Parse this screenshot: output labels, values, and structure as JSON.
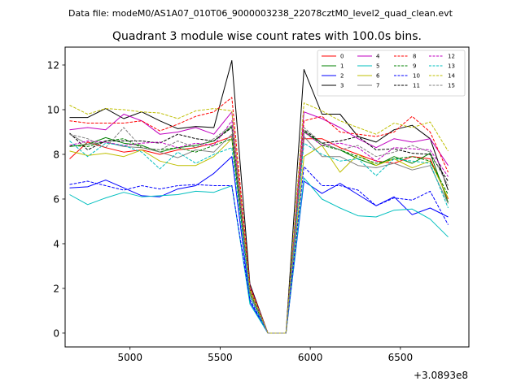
{
  "chart_data": {
    "type": "line",
    "suptitle": "Data file: modeM0/AS1A07_010T06_9000003238_22078cztM0_level2_quad_clean.evt",
    "title": "Quadrant 3 module wise count rates with 100.0s bins.",
    "xlabel": "",
    "ylabel": "",
    "offset_label": "+3.0893e8",
    "xlim": [
      4640,
      6880
    ],
    "ylim": [
      -0.62,
      12.8
    ],
    "xticks": [
      5000,
      5500,
      6000,
      6500
    ],
    "yticks": [
      0,
      2,
      4,
      6,
      8,
      10,
      12
    ],
    "x": [
      4665,
      4765,
      4865,
      4965,
      5065,
      5165,
      5265,
      5365,
      5465,
      5565,
      5665,
      5765,
      5865,
      5965,
      6065,
      6165,
      6265,
      6365,
      6465,
      6565,
      6665,
      6765
    ],
    "legend": {
      "position": "top-right",
      "columns": 4
    },
    "series": [
      {
        "name": "0",
        "color": "#ff0000",
        "dash": "solid",
        "values": [
          7.8,
          8.55,
          8.3,
          8.1,
          8.2,
          8.0,
          8.2,
          8.3,
          8.5,
          8.8,
          1.8,
          0.0,
          0.0,
          8.7,
          8.7,
          8.3,
          8.0,
          7.7,
          7.6,
          7.9,
          7.8,
          6.0
        ]
      },
      {
        "name": "1",
        "color": "#008000",
        "dash": "solid",
        "values": [
          8.35,
          8.45,
          8.75,
          8.5,
          8.4,
          8.1,
          8.3,
          8.4,
          8.6,
          9.25,
          1.8,
          0.0,
          0.0,
          9.0,
          8.5,
          8.2,
          7.8,
          7.5,
          7.9,
          7.6,
          8.05,
          5.85
        ]
      },
      {
        "name": "2",
        "color": "#0000ff",
        "dash": "solid",
        "values": [
          6.5,
          6.55,
          6.85,
          6.5,
          6.15,
          6.1,
          6.45,
          6.6,
          7.15,
          7.9,
          1.4,
          0.0,
          0.0,
          6.8,
          6.25,
          6.7,
          6.2,
          5.7,
          6.1,
          5.3,
          5.6,
          5.2
        ]
      },
      {
        "name": "3",
        "color": "#000000",
        "dash": "solid",
        "values": [
          9.65,
          9.65,
          10.05,
          9.6,
          9.9,
          9.5,
          9.15,
          9.25,
          9.2,
          12.2,
          2.2,
          0.0,
          0.0,
          11.8,
          9.8,
          9.8,
          8.8,
          8.55,
          9.1,
          9.3,
          8.7,
          6.4
        ]
      },
      {
        "name": "4",
        "color": "#c000c0",
        "dash": "solid",
        "values": [
          9.1,
          9.2,
          9.1,
          9.8,
          9.5,
          8.9,
          9.0,
          9.2,
          8.9,
          9.9,
          2.1,
          0.0,
          0.0,
          9.9,
          9.6,
          9.2,
          8.7,
          8.3,
          8.7,
          8.55,
          8.7,
          7.5
        ]
      },
      {
        "name": "5",
        "color": "#00bfbf",
        "dash": "solid",
        "values": [
          6.2,
          5.75,
          6.05,
          6.3,
          6.1,
          6.15,
          6.2,
          6.35,
          6.3,
          6.6,
          1.3,
          0.0,
          0.0,
          6.95,
          6.0,
          5.6,
          5.25,
          5.2,
          5.5,
          5.55,
          5.1,
          4.3
        ]
      },
      {
        "name": "6",
        "color": "#bfbf00",
        "dash": "solid",
        "values": [
          8.15,
          7.95,
          8.05,
          7.9,
          8.2,
          7.7,
          7.5,
          7.5,
          7.9,
          8.7,
          1.9,
          0.0,
          0.0,
          7.9,
          8.4,
          7.2,
          8.0,
          7.5,
          7.8,
          7.4,
          7.7,
          6.05
        ]
      },
      {
        "name": "7",
        "color": "#808080",
        "dash": "solid",
        "values": [
          8.9,
          8.45,
          8.55,
          8.35,
          8.3,
          8.1,
          7.85,
          8.2,
          8.1,
          8.9,
          1.7,
          0.0,
          0.0,
          8.8,
          7.9,
          7.9,
          7.5,
          7.4,
          7.6,
          7.3,
          7.5,
          5.8
        ]
      },
      {
        "name": "8",
        "color": "#ff0000",
        "dash": "dashed",
        "values": [
          9.5,
          9.4,
          9.4,
          9.4,
          9.5,
          9.05,
          9.35,
          9.7,
          9.9,
          10.55,
          2.1,
          0.0,
          0.0,
          9.5,
          9.7,
          9.0,
          8.9,
          8.8,
          9.0,
          9.7,
          9.0,
          7.2
        ]
      },
      {
        "name": "9",
        "color": "#008000",
        "dash": "dashed",
        "values": [
          8.4,
          8.35,
          8.6,
          8.7,
          8.3,
          8.2,
          8.3,
          8.1,
          8.4,
          8.7,
          1.8,
          0.0,
          0.0,
          9.05,
          8.4,
          8.2,
          7.9,
          7.6,
          7.8,
          7.9,
          7.7,
          6.2
        ]
      },
      {
        "name": "10",
        "color": "#0000ff",
        "dash": "dashed",
        "values": [
          6.65,
          6.8,
          6.6,
          6.4,
          6.6,
          6.45,
          6.6,
          6.65,
          6.6,
          6.6,
          1.5,
          0.0,
          0.0,
          7.45,
          6.6,
          6.6,
          6.4,
          5.7,
          6.05,
          5.95,
          6.35,
          4.85
        ]
      },
      {
        "name": "11",
        "color": "#000000",
        "dash": "dashed",
        "values": [
          8.95,
          8.2,
          8.6,
          8.6,
          8.6,
          8.5,
          8.9,
          8.7,
          8.6,
          9.2,
          2.0,
          0.0,
          0.0,
          9.1,
          8.5,
          8.6,
          8.8,
          8.2,
          8.25,
          8.05,
          8.0,
          6.8
        ]
      },
      {
        "name": "12",
        "color": "#c000c0",
        "dash": "dashed",
        "values": [
          8.4,
          8.6,
          8.55,
          8.4,
          8.5,
          8.55,
          8.3,
          8.5,
          8.4,
          9.5,
          2.0,
          0.0,
          0.0,
          9.0,
          8.4,
          8.5,
          8.3,
          7.7,
          8.3,
          8.25,
          8.2,
          7.0
        ]
      },
      {
        "name": "13",
        "color": "#00bfbf",
        "dash": "dashed",
        "values": [
          8.6,
          7.9,
          8.5,
          8.4,
          8.1,
          7.35,
          8.1,
          7.6,
          8.0,
          8.3,
          1.6,
          0.0,
          0.0,
          8.5,
          8.0,
          7.7,
          7.8,
          7.05,
          7.8,
          7.7,
          7.6,
          5.6
        ]
      },
      {
        "name": "14",
        "color": "#bfbf00",
        "dash": "dashed",
        "values": [
          10.2,
          9.8,
          10.05,
          10.0,
          9.9,
          9.85,
          9.6,
          9.95,
          10.05,
          9.95,
          2.0,
          0.0,
          0.0,
          10.3,
          9.95,
          9.5,
          9.2,
          8.9,
          9.4,
          9.2,
          9.45,
          8.15
        ]
      },
      {
        "name": "15",
        "color": "#808080",
        "dash": "dashed",
        "values": [
          8.9,
          8.7,
          8.3,
          9.2,
          8.3,
          8.2,
          8.6,
          8.3,
          8.7,
          9.3,
          1.8,
          0.0,
          0.0,
          9.2,
          8.5,
          8.2,
          8.4,
          7.9,
          8.1,
          8.4,
          8.1,
          6.6
        ]
      }
    ]
  }
}
